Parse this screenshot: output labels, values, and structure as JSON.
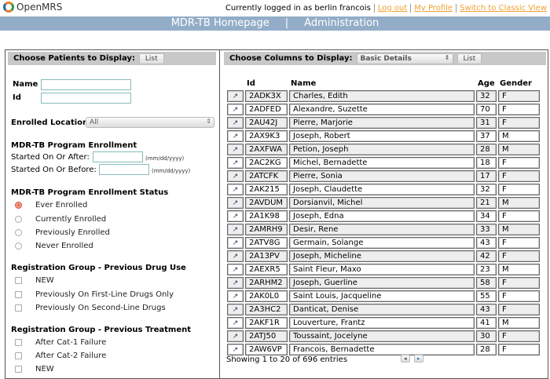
{
  "header": {
    "logo": "OpenMRS",
    "logged_in": "Currently logged in as berlin francois",
    "links": [
      "Log out",
      "My Profile",
      "Switch to Classic View"
    ]
  },
  "nav": {
    "items": [
      "MDR-TB Homepage",
      "|",
      "Administration"
    ]
  },
  "left": {
    "title": "Choose Patients to Display:",
    "list_button": "List",
    "name_label": "Name",
    "id_label": "Id",
    "location_label": "Enrolled Location",
    "location_value": "All",
    "enrollment_heading": "MDR-TB Program Enrollment",
    "after_label": "Started On Or After:",
    "before_label": "Started On Or Before:",
    "date_hint": "(mm/dd/yyyy)",
    "status_heading": "MDR-TB Program Enrollment Status",
    "status_options": [
      {
        "label": "Ever Enrolled",
        "checked": true
      },
      {
        "label": "Currently Enrolled",
        "checked": false
      },
      {
        "label": "Previously Enrolled",
        "checked": false
      },
      {
        "label": "Never Enrolled",
        "checked": false
      }
    ],
    "drug_heading": "Registration Group - Previous Drug Use",
    "drug_options": [
      "NEW",
      "Previously On First-Line Drugs Only",
      "Previously On Second-Line Drugs"
    ],
    "treatment_heading": "Registration Group - Previous Treatment",
    "treatment_options": [
      "After Cat-1 Failure",
      "After Cat-2 Failure",
      "NEW"
    ]
  },
  "right": {
    "title": "Choose Columns to Display:",
    "columns_value": "Basic Details",
    "list_button": "List",
    "headers": [
      "",
      "Id",
      "Name",
      "Age",
      "Gender"
    ],
    "rows": [
      [
        "2ADK3X",
        "Charles, Edith",
        "32",
        "F"
      ],
      [
        "2ADFED",
        "Alexandre, Suzette",
        "70",
        "F"
      ],
      [
        "2AU42J",
        "Pierre, Marjorie",
        "31",
        "F"
      ],
      [
        "2AX9K3",
        "Joseph, Robert",
        "37",
        "M"
      ],
      [
        "2AXFWA",
        "Petion, Joseph",
        "28",
        "M"
      ],
      [
        "2AC2KG",
        "Michel, Bernadette",
        "18",
        "F"
      ],
      [
        "2ATCFK",
        "Pierre, Sonia",
        "17",
        "F"
      ],
      [
        "2AK215",
        "Joseph, Claudette",
        "32",
        "F"
      ],
      [
        "2AVDUM",
        "Dorsianvil, Michel",
        "21",
        "M"
      ],
      [
        "2A1K98",
        "Joseph, Edna",
        "34",
        "F"
      ],
      [
        "2AMRH9",
        "Desir, Rene",
        "33",
        "M"
      ],
      [
        "2ATV8G",
        "Germain, Solange",
        "43",
        "F"
      ],
      [
        "2A13PV",
        "Joseph, Micheline",
        "42",
        "F"
      ],
      [
        "2AEXR5",
        "Saint Fleur, Maxo",
        "23",
        "M"
      ],
      [
        "2ARHM2",
        "Joseph, Guerline",
        "58",
        "F"
      ],
      [
        "2AK0L0",
        "Saint Louis, Jacqueline",
        "55",
        "F"
      ],
      [
        "2A3HC2",
        "Danticat, Denise",
        "43",
        "F"
      ],
      [
        "2AKF1R",
        "Louverture, Frantz",
        "41",
        "M"
      ],
      [
        "2ATJ50",
        "Toussaint, Jocelyne",
        "30",
        "F"
      ],
      [
        "2AW6VP",
        "Francois, Bernadette",
        "28",
        "F"
      ]
    ],
    "footer": "Showing 1 to 20 of 696 entries"
  }
}
